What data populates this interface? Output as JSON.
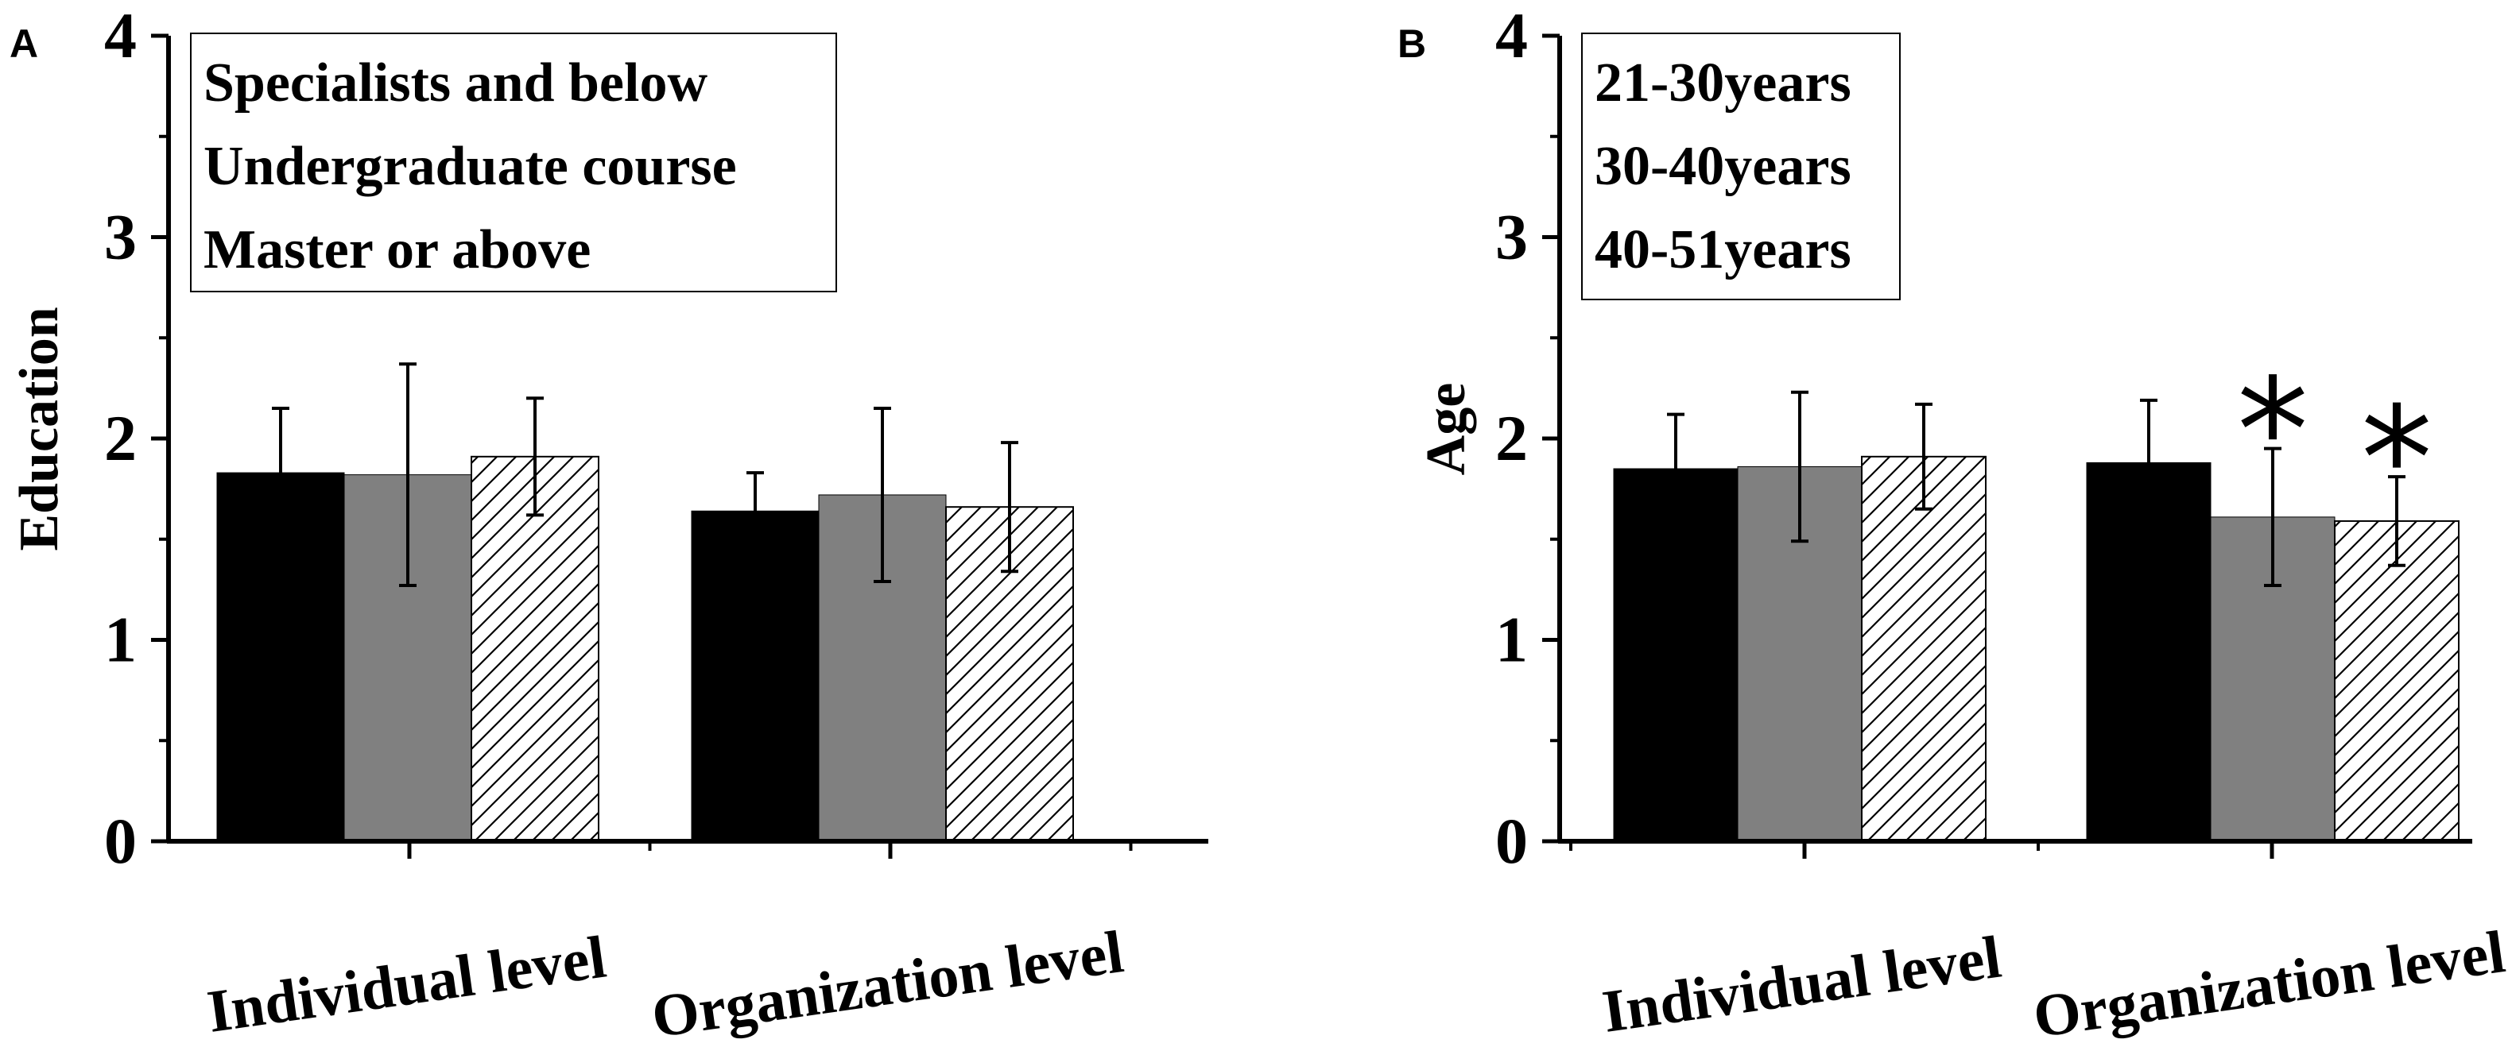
{
  "figure": {
    "colors": {
      "black": "#000000",
      "gray": "#808080",
      "hatch_bg": "#ffffff"
    },
    "series_fills": [
      "solid-black",
      "solid-gray",
      "hatched"
    ]
  },
  "chart_data": [
    {
      "panel": "A",
      "type": "bar",
      "title": "",
      "xlabel": "",
      "ylabel": "Education",
      "ylim": [
        0,
        4
      ],
      "yticks": [
        "0",
        "1",
        "2",
        "3",
        "4"
      ],
      "categories": [
        "Individual level",
        "Organization level"
      ],
      "series": [
        {
          "name": "Specialists and below",
          "values": [
            1.83,
            1.64
          ],
          "errors": [
            0.32,
            0.19
          ]
        },
        {
          "name": "Undergraduate course",
          "values": [
            1.82,
            1.72
          ],
          "errors": [
            0.55,
            0.43
          ]
        },
        {
          "name": "Master or above",
          "values": [
            1.91,
            1.66
          ],
          "errors": [
            0.29,
            0.32
          ]
        }
      ],
      "significance": [],
      "legend_position": "top-left"
    },
    {
      "panel": "B",
      "type": "bar",
      "title": "",
      "xlabel": "",
      "ylabel": "Age",
      "ylim": [
        0,
        4
      ],
      "yticks": [
        "0",
        "1",
        "2",
        "3",
        "4"
      ],
      "categories": [
        "Individual level",
        "Organization level"
      ],
      "series": [
        {
          "name": "21-30years",
          "values": [
            1.85,
            1.88
          ],
          "errors": [
            0.27,
            0.31
          ]
        },
        {
          "name": "30-40years",
          "values": [
            1.86,
            1.61
          ],
          "errors": [
            0.37,
            0.34
          ]
        },
        {
          "name": "40-51years",
          "values": [
            1.91,
            1.59
          ],
          "errors": [
            0.26,
            0.22
          ]
        }
      ],
      "significance": [
        {
          "category": 1,
          "series": 1,
          "label": "*"
        },
        {
          "category": 1,
          "series": 2,
          "label": "*"
        }
      ],
      "legend_position": "top-left"
    }
  ]
}
